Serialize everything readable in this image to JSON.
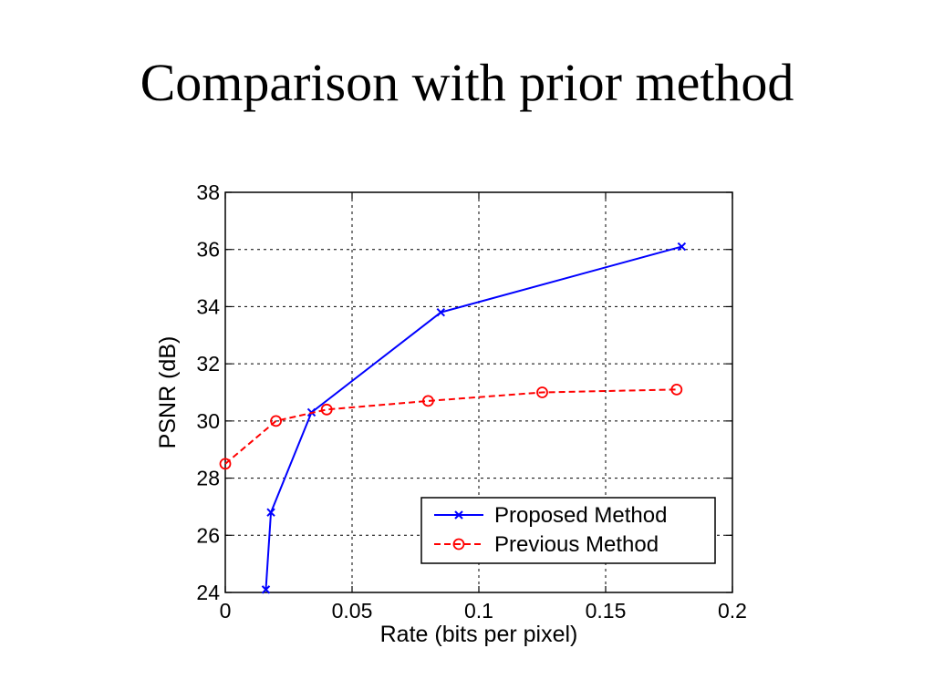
{
  "slide": {
    "title": "Comparison with prior method"
  },
  "chart_data": {
    "type": "line",
    "title": "",
    "xlabel": "Rate (bits per pixel)",
    "ylabel": "PSNR (dB)",
    "xlim": [
      0,
      0.2
    ],
    "ylim": [
      24,
      38
    ],
    "xticks": [
      "0",
      "0.05",
      "0.1",
      "0.15",
      "0.2"
    ],
    "yticks": [
      "24",
      "26",
      "28",
      "30",
      "32",
      "34",
      "36",
      "38"
    ],
    "grid": true,
    "legend_position": "bottom-right",
    "series": [
      {
        "name": "Proposed Method",
        "color": "#0000ff",
        "line_style": "solid",
        "marker": "x",
        "x": [
          0.016,
          0.018,
          0.034,
          0.085,
          0.18
        ],
        "y": [
          24.1,
          26.8,
          30.3,
          33.8,
          36.1
        ]
      },
      {
        "name": "Previous Method",
        "color": "#ff0000",
        "line_style": "dashed",
        "marker": "circle",
        "x": [
          0.0,
          0.02,
          0.04,
          0.08,
          0.125,
          0.178
        ],
        "y": [
          28.5,
          30.0,
          30.4,
          30.7,
          31.0,
          31.1
        ]
      }
    ]
  }
}
